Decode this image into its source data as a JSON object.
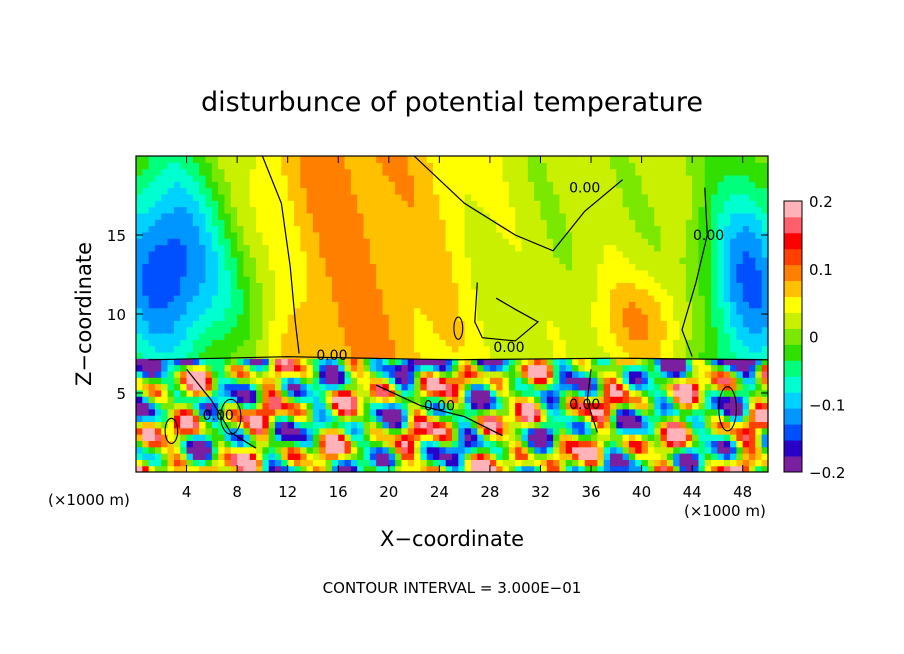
{
  "chart_data": {
    "type": "heatmap",
    "title": "disturbunce of potential temperature",
    "xlabel": "X−coordinate",
    "ylabel": "Z−coordinate",
    "x_unit_label_left": "(×1000 m)",
    "x_unit_label_right": "(×1000 m)",
    "footer": "CONTOUR INTERVAL = 3.000E−01",
    "xlim": [
      0,
      50
    ],
    "ylim": [
      0,
      20
    ],
    "x_ticks": [
      4,
      8,
      12,
      16,
      20,
      24,
      28,
      32,
      36,
      40,
      44,
      48
    ],
    "x_tick_labels": [
      "4",
      "8",
      "12",
      "16",
      "20",
      "24",
      "28",
      "32",
      "36",
      "40",
      "44",
      "48"
    ],
    "y_ticks": [
      5,
      10,
      15
    ],
    "y_tick_labels": [
      "5",
      "10",
      "15"
    ],
    "colorbar": {
      "min": -0.2,
      "max": 0.2,
      "ticks": [
        0.2,
        0.1,
        0,
        -0.1,
        -0.2
      ],
      "tick_labels": [
        "0.2",
        "0.1",
        "0",
        "−0.1",
        "−0.2"
      ],
      "colors": [
        "#7a1fa0",
        "#2a00c8",
        "#0050ff",
        "#0096ff",
        "#00d2ff",
        "#00ffd0",
        "#00ff7a",
        "#30e000",
        "#7ae800",
        "#c8f000",
        "#ffff00",
        "#ffc000",
        "#ff8000",
        "#ff4000",
        "#ff0000",
        "#ff5f6a",
        "#ffb2b8"
      ]
    },
    "contour_labels": [
      {
        "text": "0.00",
        "x": 35.5,
        "y": 18.0
      },
      {
        "text": "0.00",
        "x": 45.3,
        "y": 15.0
      },
      {
        "text": "0.00",
        "x": 15.5,
        "y": 7.4
      },
      {
        "text": "0.00",
        "x": 29.5,
        "y": 7.9
      },
      {
        "text": "0.00",
        "x": 6.5,
        "y": 3.6
      },
      {
        "text": "0.00",
        "x": 24.0,
        "y": 4.2
      },
      {
        "text": "0.00",
        "x": 35.5,
        "y": 4.3
      }
    ]
  }
}
